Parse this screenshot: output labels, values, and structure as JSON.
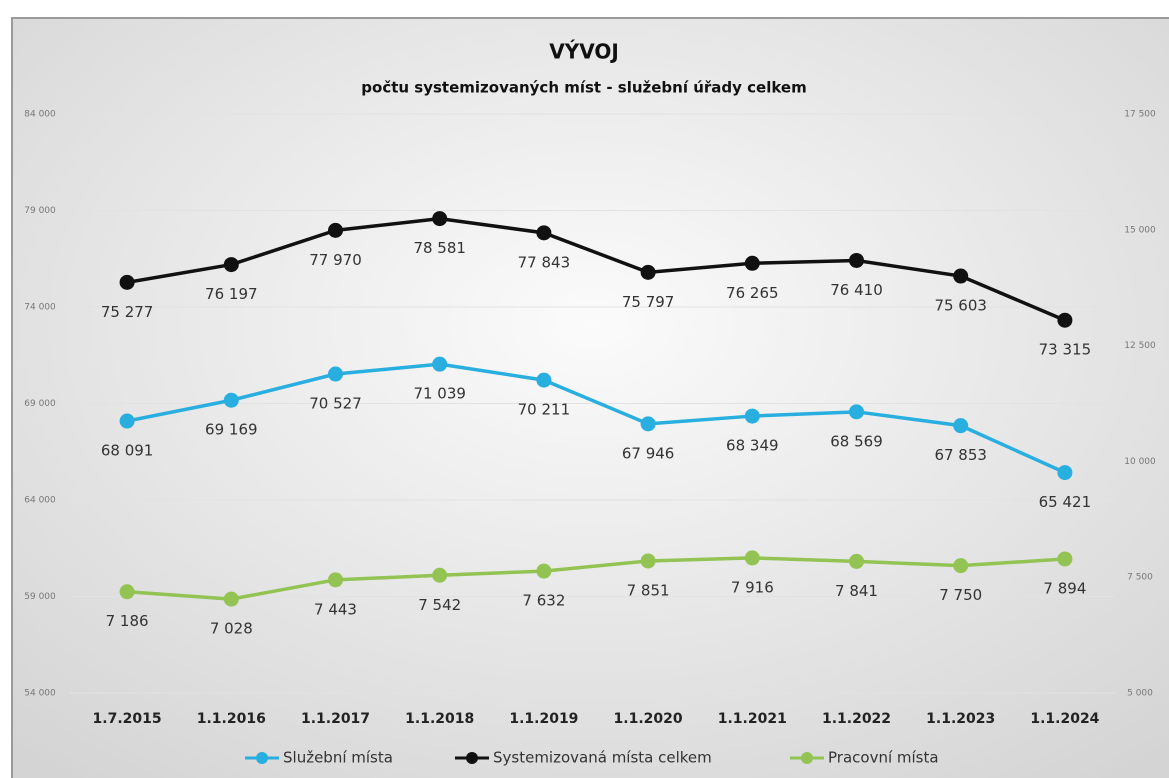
{
  "chart_data": {
    "type": "line",
    "title": "VÝVOJ",
    "subtitle": "počtu systemizovaných míst - služební úřady celkem",
    "categories": [
      "1.7.2015",
      "1.1.2016",
      "1.1.2017",
      "1.1.2018",
      "1.1.2019",
      "1.1.2020",
      "1.1.2021",
      "1.1.2022",
      "1.1.2023",
      "1.1.2024"
    ],
    "series": [
      {
        "name": "Služební místa",
        "color": "#29aee0",
        "values": [
          68091,
          69169,
          70527,
          71039,
          70211,
          67946,
          68349,
          68569,
          67853,
          65421
        ],
        "value_labels": [
          "68 091",
          "69 169",
          "70 527",
          "71 039",
          "70 211",
          "67 946",
          "68 349",
          "68 569",
          "67 853",
          "65 421"
        ]
      },
      {
        "name": "Systemizovaná místa celkem",
        "color": "#111111",
        "values": [
          75277,
          76197,
          77970,
          78581,
          77843,
          75797,
          76265,
          76410,
          75603,
          73315
        ],
        "value_labels": [
          "75 277",
          "76 197",
          "77 970",
          "78 581",
          "77 843",
          "75 797",
          "76 265",
          "76 410",
          "75 603",
          "73 315"
        ]
      },
      {
        "name": "Pracovní místa",
        "color": "#92c353",
        "axis": "y2",
        "values": [
          7186,
          7028,
          7443,
          7542,
          7632,
          7851,
          7916,
          7841,
          7750,
          7894
        ],
        "value_labels": [
          "7 186",
          "7 028",
          "7 443",
          "7 542",
          "7 632",
          "7 851",
          "7 916",
          "7 841",
          "7 750",
          "7 894"
        ]
      }
    ],
    "ylim": [
      54000,
      84000
    ],
    "yticks": [
      {
        "value": 54000,
        "label": "54 000"
      },
      {
        "value": 59000,
        "label": "59 000"
      },
      {
        "value": 64000,
        "label": "64 000"
      },
      {
        "value": 69000,
        "label": "69 000"
      },
      {
        "value": 74000,
        "label": "74 000"
      },
      {
        "value": 79000,
        "label": "79 000"
      },
      {
        "value": 84000,
        "label": "84 000"
      }
    ],
    "y2lim": [
      5000,
      17500
    ],
    "y2ticks": [
      {
        "value": 5000,
        "label": "5 000"
      },
      {
        "value": 7500,
        "label": "7 500"
      },
      {
        "value": 10000,
        "label": "10 000"
      },
      {
        "value": 12500,
        "label": "12 500"
      },
      {
        "value": 15000,
        "label": "15 000"
      },
      {
        "value": 17500,
        "label": "17 500"
      }
    ],
    "grid": true,
    "legend": "bottom"
  }
}
